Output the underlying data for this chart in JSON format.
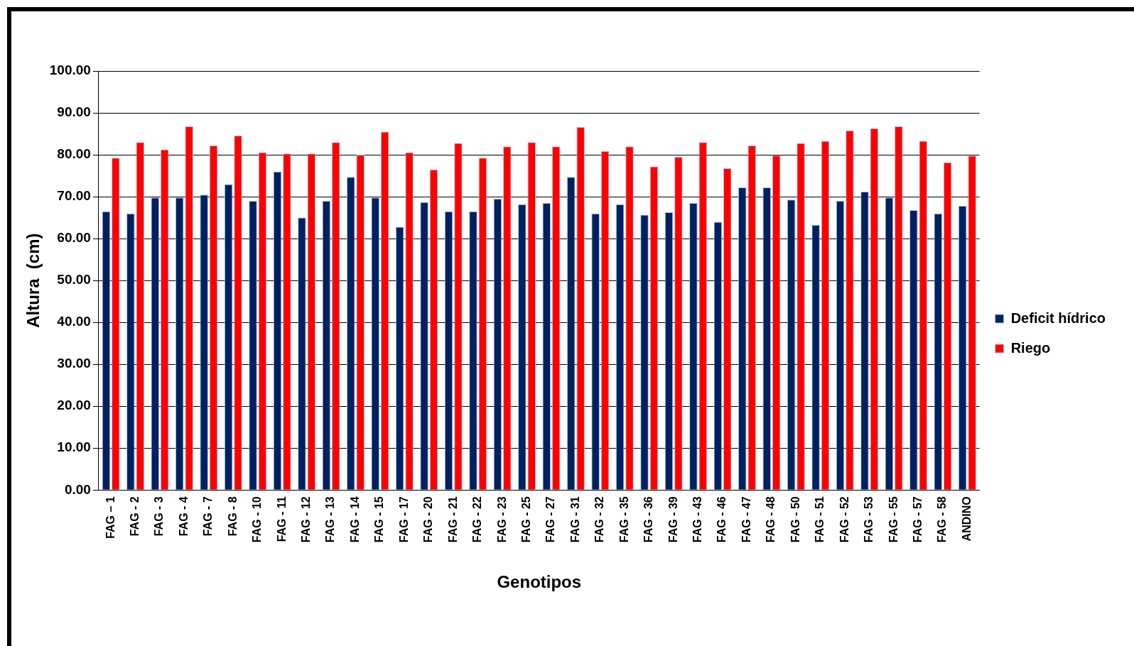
{
  "chart_data": {
    "type": "bar",
    "xlabel": "Genotipos",
    "ylabel": "Altura  (cm)",
    "categories": [
      "FAG – 1",
      "FAG - 2",
      "FAG - 3",
      "FAG - 4",
      "FAG - 7",
      "FAG - 8",
      "FAG - 10",
      "FAG - 11",
      "FAG - 12",
      "FAG - 13",
      "FAG - 14",
      "FAG - 15",
      "FAG - 17",
      "FAG - 20",
      "FAG - 21",
      "FAG - 22",
      "FAG - 23",
      "FAG - 25",
      "FAG - 27",
      "FAG - 31",
      "FAG - 32",
      "FAG - 35",
      "FAG - 36",
      "FAG - 39",
      "FAG - 43",
      "FAG - 46",
      "FAG - 47",
      "FAG - 48",
      "FAG - 50",
      "FAG - 51",
      "FAG - 52",
      "FAG - 53",
      "FAG - 55",
      "FAG - 57",
      "FAG - 58",
      "ANDINO"
    ],
    "series": [
      {
        "name": "Deficit hídrico",
        "color": "#002060",
        "values": [
          66.5,
          66,
          69.8,
          69.8,
          70.5,
          73,
          69,
          76,
          65,
          69,
          74.7,
          69.8,
          62.8,
          68.7,
          66.5,
          66.5,
          69.5,
          68.2,
          68.5,
          74.7,
          66,
          68.2,
          65.7,
          66.3,
          68.5,
          64,
          72.2,
          72.2,
          69.3,
          63.3,
          69,
          71.2,
          69.8,
          66.8,
          66,
          67.8
        ]
      },
      {
        "name": "Riego",
        "color": "#ff0000",
        "values": [
          79.3,
          83,
          81.3,
          86.8,
          82.2,
          84.6,
          80.6,
          80.3,
          80.3,
          83,
          80,
          85.5,
          80.6,
          76.5,
          82.8,
          79.3,
          82,
          83,
          82,
          86.6,
          80.9,
          82,
          77.2,
          79.5,
          83,
          76.8,
          82.2,
          79.9,
          82.8,
          83.3,
          85.8,
          86.3,
          86.8,
          83.3,
          78.2,
          79.8
        ]
      }
    ],
    "ylim": [
      0,
      100
    ],
    "yticks": [
      {
        "value": 0,
        "label": "0.00"
      },
      {
        "value": 10,
        "label": "10.00"
      },
      {
        "value": 20,
        "label": "20.00"
      },
      {
        "value": 30,
        "label": "30.00"
      },
      {
        "value": 40,
        "label": "40.00"
      },
      {
        "value": 50,
        "label": "50.00"
      },
      {
        "value": 60,
        "label": "60.00"
      },
      {
        "value": 70,
        "label": "70.00"
      },
      {
        "value": 80,
        "label": "80.00"
      },
      {
        "value": 90,
        "label": "90.00"
      },
      {
        "value": 100,
        "label": "100.00"
      }
    ],
    "grid": "y",
    "legend": "right"
  }
}
